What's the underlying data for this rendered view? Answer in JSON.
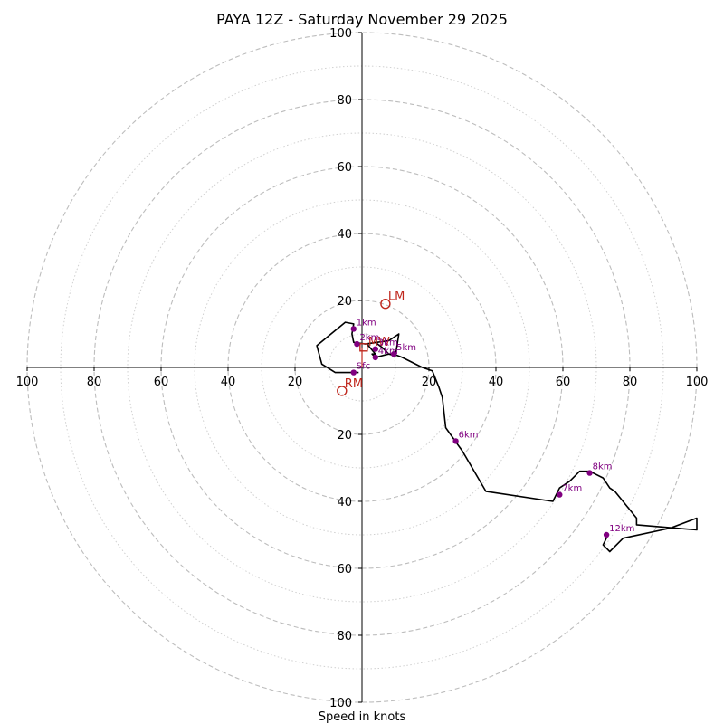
{
  "chart_data": {
    "type": "hodograph",
    "title": "PAYA 12Z - Saturday November 29 2025",
    "xlabel": "Speed in knots",
    "units": "knots",
    "max_range": 100,
    "major_ring_interval": 20,
    "minor_ring_interval": 10,
    "tick_labels": [
      "20",
      "40",
      "60",
      "80",
      "100"
    ],
    "hodograph": {
      "points": [
        [
          -1,
          -1.5
        ],
        [
          -8,
          -1.5
        ],
        [
          -12,
          1
        ],
        [
          -13.5,
          6.5
        ],
        [
          -5,
          13.5
        ],
        [
          -2.5,
          13
        ],
        [
          -3,
          10
        ],
        [
          -2.5,
          7.5
        ],
        [
          1,
          7
        ],
        [
          8,
          8
        ],
        [
          11,
          10
        ],
        [
          10,
          3.5
        ],
        [
          8,
          4
        ],
        [
          6,
          6
        ],
        [
          4,
          7.5
        ],
        [
          1.5,
          7
        ],
        [
          4,
          4
        ],
        [
          3,
          4
        ],
        [
          4,
          3
        ],
        [
          8,
          4
        ],
        [
          9.5,
          4
        ],
        [
          12,
          3
        ],
        [
          18,
          0
        ],
        [
          21,
          -1
        ],
        [
          23,
          -6
        ],
        [
          24,
          -9
        ],
        [
          25,
          -18
        ],
        [
          30,
          -25
        ],
        [
          37,
          -37
        ],
        [
          57,
          -40
        ],
        [
          59,
          -36
        ],
        [
          62,
          -34
        ],
        [
          65,
          -31
        ],
        [
          68,
          -31
        ],
        [
          72,
          -33
        ],
        [
          74,
          -36
        ],
        [
          75.5,
          -37
        ],
        [
          82,
          -45
        ],
        [
          82,
          -47
        ],
        [
          100,
          -48.5
        ],
        [
          100,
          -45
        ],
        [
          92,
          -48
        ],
        [
          78,
          -51
        ],
        [
          76,
          -53
        ],
        [
          74,
          -55
        ],
        [
          72,
          -53
        ],
        [
          73,
          -51
        ]
      ],
      "height_markers": [
        {
          "label": "1km",
          "u": -2.5,
          "v": 11.5
        },
        {
          "label": "2km",
          "u": -1.5,
          "v": 7
        },
        {
          "label": "3km",
          "u": 4,
          "v": 5.5
        },
        {
          "label": "4km",
          "u": 4,
          "v": 3
        },
        {
          "label": "5km",
          "u": 9.5,
          "v": 4
        },
        {
          "label": "6km",
          "u": 28,
          "v": -22
        },
        {
          "label": "7km",
          "u": 59,
          "v": -38
        },
        {
          "label": "8km",
          "u": 68,
          "v": -31.5
        },
        {
          "label": "12km",
          "u": 73,
          "v": -50
        },
        {
          "label": "Sfc",
          "u": -2.5,
          "v": -1.5
        }
      ]
    },
    "storm_motion": [
      {
        "label": "LM",
        "u": 7,
        "v": 19
      },
      {
        "label": "RM",
        "u": -6,
        "v": -7
      }
    ],
    "mean_wind": {
      "label": "MW",
      "u": 0.5,
      "v": 6
    },
    "shear_vector": {
      "u1": 0,
      "v1": 6,
      "u2": 0,
      "v2": 0
    },
    "colors": {
      "hodograph": "#000000",
      "height_markers": "#800080",
      "storm_motion": "#c0281e",
      "rings": "#bdbdbd"
    }
  }
}
